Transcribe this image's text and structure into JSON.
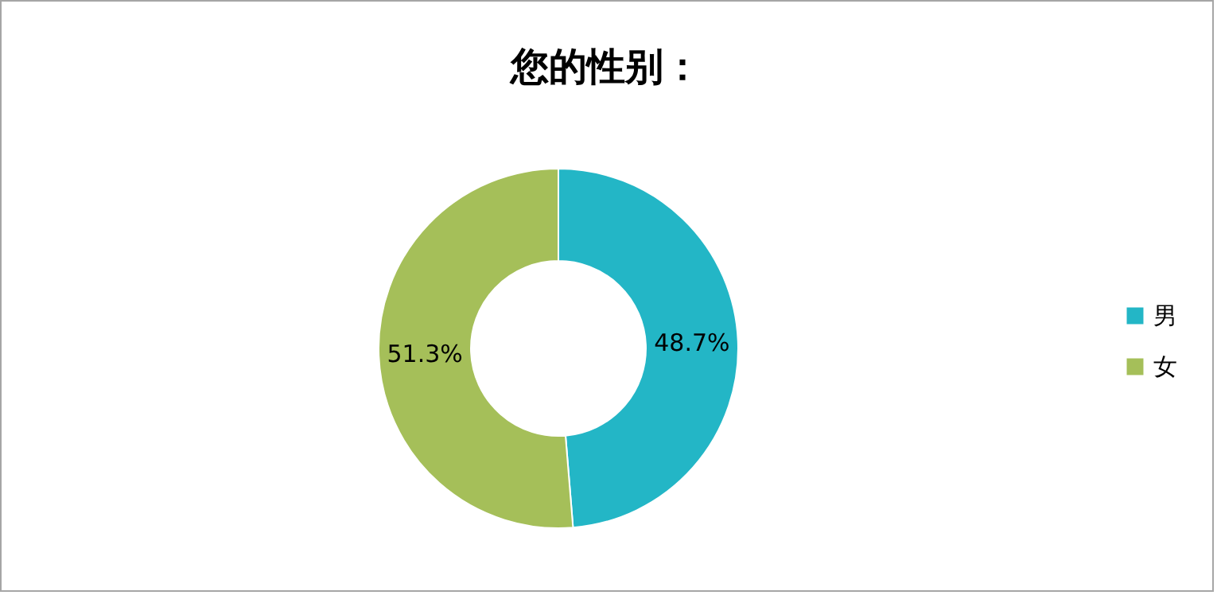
{
  "chart_data": {
    "type": "donut",
    "title": "您的性别：",
    "categories": [
      "男",
      "女"
    ],
    "values": [
      48.7,
      51.3
    ],
    "colors": [
      "#23b6c6",
      "#a5bf59"
    ],
    "value_labels": [
      "48.7%",
      "51.3%"
    ],
    "legend": "right"
  }
}
